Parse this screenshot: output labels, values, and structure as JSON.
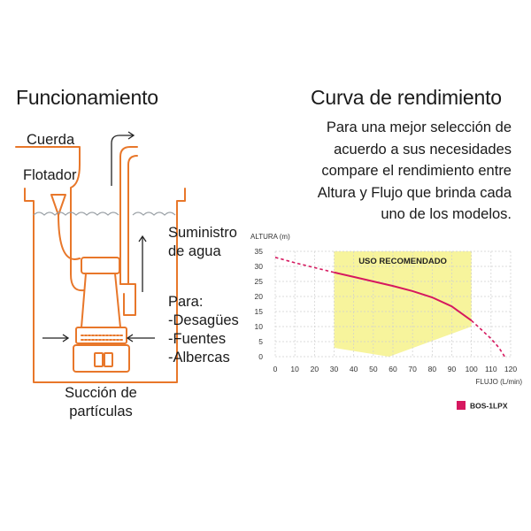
{
  "left": {
    "title": "Funcionamiento",
    "labels": {
      "cuerda": "Cuerda",
      "flotador": "Flotador",
      "suministro": [
        "Suministro",
        "de agua"
      ],
      "para": [
        "Para:",
        "-Desagües",
        "-Fuentes",
        "-Albercas"
      ],
      "succion": [
        "Succión de",
        "partículas"
      ]
    }
  },
  "right": {
    "title": "Curva de rendimiento",
    "description": [
      "Para una mejor selección de",
      "acuerdo a sus necesidades",
      "compare el rendimiento entre",
      "Altura y Flujo que brinda cada",
      "uno de los modelos."
    ]
  },
  "colors": {
    "orange": "#e8772a",
    "curve": "#d6185f",
    "zone": "#f7f49c",
    "grid": "#cfcfcf",
    "dark": "#222222"
  },
  "chart_data": {
    "type": "line",
    "ylabel": "ALTURA (m)",
    "xlabel": "FLUJO (L/min)",
    "x_ticks": [
      "0",
      "10",
      "20",
      "30",
      "40",
      "50",
      "60",
      "70",
      "80",
      "90",
      "100",
      "110",
      "120"
    ],
    "y_ticks": [
      "0",
      "5",
      "10",
      "15",
      "20",
      "25",
      "30",
      "35"
    ],
    "xlim": [
      0,
      120
    ],
    "ylim": [
      0,
      35
    ],
    "zone_label": "USO RECOMENDADO",
    "recommended_zone": {
      "x_from": 30,
      "x_to": 100,
      "bottom_left": [
        58,
        0
      ],
      "bottom_right": [
        100,
        10
      ]
    },
    "series": [
      {
        "name": "BOS-1LPX",
        "color": "#d6185f",
        "points": [
          [
            0,
            33
          ],
          [
            10,
            31.2
          ],
          [
            20,
            29.6
          ],
          [
            30,
            28
          ],
          [
            40,
            26.5
          ],
          [
            50,
            25
          ],
          [
            60,
            23.5
          ],
          [
            70,
            21.8
          ],
          [
            80,
            19.7
          ],
          [
            90,
            16.7
          ],
          [
            100,
            12
          ],
          [
            105,
            9
          ],
          [
            110,
            6
          ],
          [
            114,
            3
          ],
          [
            117,
            0
          ]
        ],
        "solid_range": [
          30,
          100
        ]
      }
    ],
    "grid": true
  }
}
